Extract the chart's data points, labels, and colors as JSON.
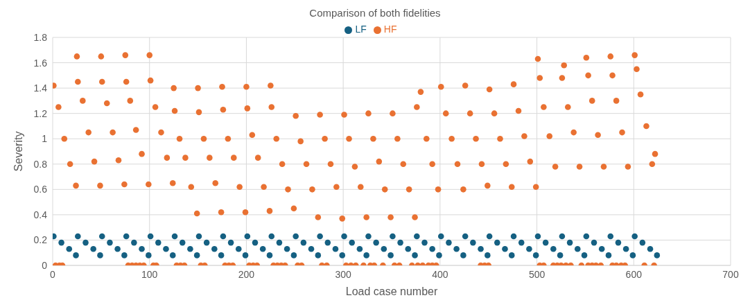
{
  "chart_data": {
    "type": "scatter",
    "title": "Comparison of both fidelities",
    "xlabel": "Load case number",
    "ylabel": "Severity",
    "xlim": [
      0,
      700
    ],
    "xticks": [
      0,
      100,
      200,
      300,
      400,
      500,
      600,
      700
    ],
    "ylim": [
      0,
      1.8
    ],
    "yticks": [
      0,
      0.2,
      0.4,
      0.6,
      0.8,
      1,
      1.2,
      1.4,
      1.6,
      1.8
    ],
    "grid": true,
    "legend": "top",
    "marker": "circle",
    "series": [
      {
        "name": "LF",
        "color": "#156082",
        "x": [
          1,
          9,
          17,
          24,
          26,
          34,
          42,
          49,
          51,
          59,
          67,
          74,
          76,
          84,
          92,
          99,
          101,
          109,
          117,
          124,
          126,
          134,
          142,
          149,
          151,
          159,
          167,
          174,
          176,
          184,
          192,
          199,
          201,
          209,
          217,
          224,
          226,
          234,
          242,
          249,
          251,
          259,
          267,
          274,
          276,
          284,
          292,
          299,
          301,
          309,
          317,
          324,
          326,
          334,
          342,
          349,
          351,
          359,
          367,
          374,
          376,
          384,
          392,
          399,
          401,
          409,
          417,
          424,
          426,
          434,
          442,
          449,
          451,
          459,
          467,
          474,
          476,
          484,
          492,
          499,
          501,
          509,
          517,
          524,
          526,
          534,
          542,
          549,
          551,
          559,
          567,
          574,
          576,
          584,
          592,
          599,
          601,
          609,
          617,
          624
        ],
        "values": [
          0.23,
          0.18,
          0.13,
          0.08,
          0.23,
          0.18,
          0.13,
          0.08,
          0.23,
          0.18,
          0.13,
          0.08,
          0.23,
          0.18,
          0.13,
          0.08,
          0.23,
          0.18,
          0.13,
          0.08,
          0.23,
          0.18,
          0.13,
          0.08,
          0.23,
          0.18,
          0.13,
          0.08,
          0.23,
          0.18,
          0.13,
          0.08,
          0.23,
          0.18,
          0.13,
          0.08,
          0.23,
          0.18,
          0.13,
          0.08,
          0.23,
          0.18,
          0.13,
          0.08,
          0.23,
          0.18,
          0.13,
          0.08,
          0.23,
          0.18,
          0.13,
          0.08,
          0.23,
          0.18,
          0.13,
          0.08,
          0.23,
          0.18,
          0.13,
          0.08,
          0.23,
          0.18,
          0.13,
          0.08,
          0.23,
          0.18,
          0.13,
          0.08,
          0.23,
          0.18,
          0.13,
          0.08,
          0.23,
          0.18,
          0.13,
          0.08,
          0.23,
          0.18,
          0.13,
          0.08,
          0.23,
          0.18,
          0.13,
          0.08,
          0.23,
          0.18,
          0.13,
          0.08,
          0.23,
          0.18,
          0.13,
          0.08,
          0.23,
          0.18,
          0.13,
          0.08,
          0.23,
          0.18,
          0.13,
          0.08
        ]
      },
      {
        "name": "HF",
        "color": "#e97132",
        "x": [
          1,
          6,
          12,
          18,
          24,
          25,
          26,
          31,
          37,
          43,
          49,
          50,
          51,
          56,
          62,
          68,
          74,
          75,
          76,
          80,
          86,
          92,
          99,
          100,
          101,
          106,
          112,
          118,
          124,
          125,
          126,
          131,
          137,
          143,
          149,
          150,
          151,
          156,
          162,
          168,
          174,
          175,
          176,
          181,
          187,
          193,
          199,
          200,
          201,
          206,
          212,
          218,
          224,
          225,
          226,
          231,
          237,
          243,
          249,
          251,
          256,
          262,
          268,
          274,
          276,
          281,
          287,
          293,
          299,
          301,
          306,
          312,
          318,
          324,
          326,
          331,
          337,
          343,
          349,
          351,
          356,
          362,
          368,
          374,
          376,
          380,
          386,
          392,
          398,
          401,
          406,
          412,
          418,
          424,
          426,
          431,
          437,
          443,
          449,
          451,
          456,
          462,
          468,
          474,
          476,
          481,
          487,
          493,
          499,
          501,
          503,
          507,
          513,
          519,
          526,
          528,
          532,
          538,
          544,
          551,
          553,
          557,
          563,
          569,
          576,
          578,
          582,
          588,
          594,
          601,
          603,
          607,
          613,
          619,
          622,
          3,
          7,
          10,
          78,
          82,
          86,
          90,
          94,
          104,
          107,
          128,
          132,
          136,
          153,
          157,
          178,
          182,
          186,
          203,
          207,
          211,
          228,
          232,
          236,
          240,
          253,
          257,
          278,
          283,
          303,
          308,
          313,
          321,
          328,
          332,
          341,
          353,
          358,
          371,
          377,
          382,
          388,
          392,
          396,
          442,
          446,
          450,
          503,
          507,
          517,
          521,
          525,
          530,
          535,
          546,
          553,
          557,
          561,
          566,
          578,
          582,
          587,
          591,
          611,
          621
        ],
        "values": [
          1.42,
          1.25,
          1,
          0.8,
          0.63,
          1.65,
          1.45,
          1.3,
          1.05,
          0.82,
          0.63,
          1.65,
          1.45,
          1.28,
          1.05,
          0.83,
          0.64,
          1.66,
          1.45,
          1.3,
          1.07,
          0.88,
          0.64,
          1.66,
          1.46,
          1.25,
          1.05,
          0.85,
          0.65,
          1.4,
          1.22,
          1,
          0.85,
          0.62,
          0.41,
          1.4,
          1.21,
          1,
          0.85,
          0.65,
          0.42,
          1.41,
          1.23,
          1,
          0.85,
          0.62,
          0.42,
          1.41,
          1.24,
          1.03,
          0.85,
          0.62,
          0.43,
          1.42,
          1.25,
          1,
          0.8,
          0.6,
          0.45,
          1.18,
          0.98,
          0.8,
          0.6,
          0.38,
          1.19,
          1,
          0.8,
          0.62,
          0.37,
          1.19,
          1,
          0.78,
          0.62,
          0.38,
          1.2,
          1,
          0.82,
          0.6,
          0.38,
          1.2,
          1,
          0.8,
          0.6,
          0.38,
          1.25,
          1.37,
          1,
          0.8,
          0.6,
          1.41,
          1.2,
          1,
          0.8,
          0.6,
          1.42,
          1.2,
          1,
          0.8,
          0.63,
          1.39,
          1.2,
          1,
          0.8,
          0.62,
          1.43,
          1.22,
          1.02,
          0.82,
          0.62,
          1.63,
          1.48,
          1.25,
          1.02,
          0.78,
          1.48,
          1.58,
          1.25,
          1.05,
          0.78,
          1.64,
          1.5,
          1.3,
          1.03,
          0.78,
          1.65,
          1.5,
          1.3,
          1.05,
          0.78,
          1.66,
          1.55,
          1.35,
          1.1,
          0.8,
          0.88,
          0,
          0,
          0,
          0,
          0,
          0,
          0,
          0,
          0,
          0,
          0,
          0,
          0,
          0,
          0,
          0,
          0,
          0,
          0,
          0,
          0,
          0,
          0,
          0,
          0,
          0,
          0,
          0,
          0,
          0,
          0,
          0,
          0,
          0,
          0,
          0,
          0,
          0,
          0,
          0,
          0,
          0,
          0,
          0,
          0,
          0,
          0,
          0,
          0,
          0,
          0,
          0,
          0,
          0,
          0,
          0,
          0,
          0,
          0,
          0,
          0,
          0,
          0,
          0,
          0
        ]
      }
    ]
  }
}
